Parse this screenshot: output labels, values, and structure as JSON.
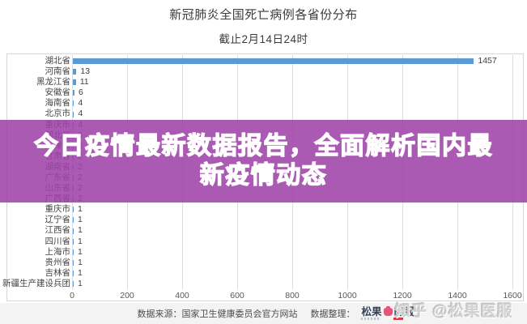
{
  "page": {
    "title": "新冠肺炎全国死亡病例各省份分布",
    "subtitle": "截止2月14日24时"
  },
  "banner": {
    "line1": "今日疫情最新数据报告，全面解析国内最",
    "line2": "新疫情动态"
  },
  "chart_data": {
    "type": "bar",
    "orientation": "horizontal",
    "title": "新冠肺炎全国死亡病例各省份分布",
    "subtitle": "截止2月14日24时",
    "categories": [
      "湖北省",
      "河南省",
      "黑龙江省",
      "安徽省",
      "海南省",
      "北京市",
      "重庆市",
      "河北省",
      "天津市",
      "甘肃省",
      "湖南省",
      "广东省",
      "山东省",
      "广西省",
      "重庆市",
      "辽宁省",
      "江西省",
      "四川省",
      "上海市",
      "贵州省",
      "吉林省",
      "新疆生产建设兵团"
    ],
    "values": [
      1457,
      13,
      11,
      6,
      4,
      4,
      4,
      3,
      3,
      2,
      2,
      2,
      2,
      2,
      1,
      1,
      1,
      1,
      1,
      1,
      1,
      1
    ],
    "xlim": [
      0,
      1600
    ],
    "xticks": [
      0,
      200,
      400,
      600,
      800,
      1000,
      1200,
      1400,
      1600
    ],
    "grid": true,
    "value_labels": true,
    "legend": false,
    "bar_color": "#5b9bd5"
  },
  "footer": {
    "source": "数据来源：国家卫生健康委员会官方网站",
    "compiled": "数据整理：",
    "logo": {
      "prefix": "松果",
      "suffix": "医服"
    }
  },
  "watermark": "知乎 @松果医服",
  "colors": {
    "bar": "#5b9bd5",
    "banner_overlay": "rgba(158,66,169,0.87)",
    "banner_text": "#ffffff",
    "watermark": "#d2d2d2",
    "logo_pink": "#e8537a",
    "logo_navy": "#32415c",
    "logo_red": "#e03a4e"
  }
}
